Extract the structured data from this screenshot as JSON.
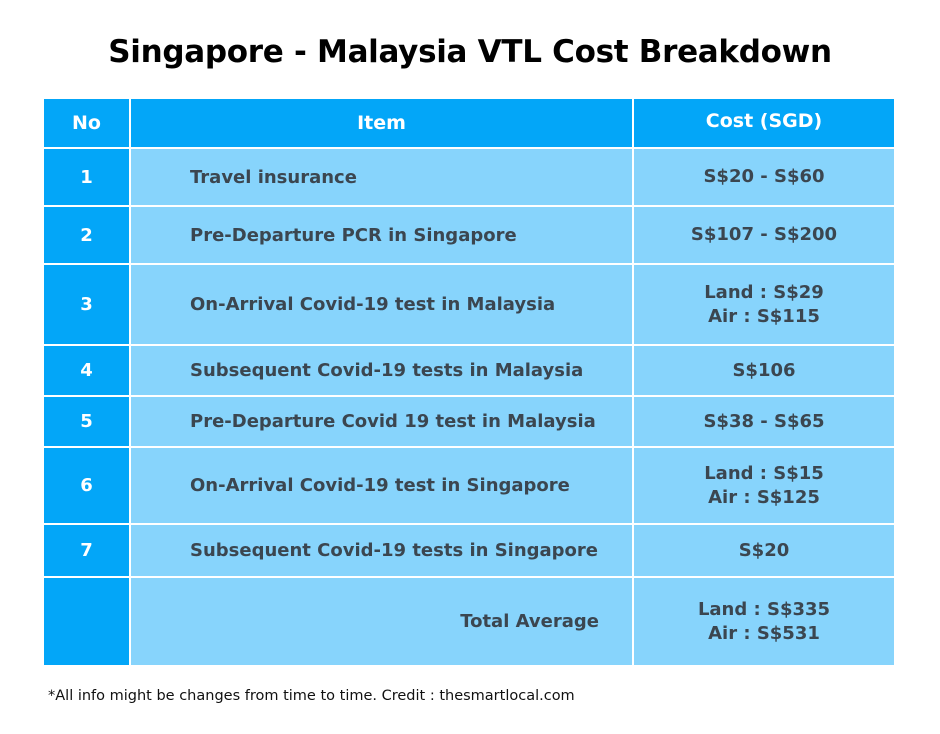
{
  "title": "Singapore - Malaysia VTL Cost Breakdown",
  "header": {
    "no": "No",
    "item": "Item",
    "cost": "Cost (SGD)"
  },
  "rows": [
    {
      "no": "1",
      "item": "Travel insurance",
      "cost": [
        "S$20 - S$60"
      ]
    },
    {
      "no": "2",
      "item": "Pre-Departure PCR in Singapore",
      "cost": [
        "S$107 - S$200"
      ]
    },
    {
      "no": "3",
      "item": "On-Arrival Covid-19 test in Malaysia",
      "cost": [
        "Land : S$29",
        "Air : S$115"
      ]
    },
    {
      "no": "4",
      "item": "Subsequent Covid-19 tests in Malaysia",
      "cost": [
        "S$106"
      ]
    },
    {
      "no": "5",
      "item": "Pre-Departure Covid 19 test in Malaysia",
      "cost": [
        "S$38 - S$65"
      ]
    },
    {
      "no": "6",
      "item": "On-Arrival Covid-19 test in Singapore",
      "cost": [
        "Land : S$15",
        "Air : S$125"
      ]
    },
    {
      "no": "7",
      "item": "Subsequent Covid-19 tests in Singapore",
      "cost": [
        "S$20"
      ]
    }
  ],
  "total": {
    "label": "Total Average",
    "cost": [
      "Land : S$335",
      "Air : S$531"
    ]
  },
  "footnote": "*All info might be changes from time to time. Credit : thesmartlocal.com",
  "colors": {
    "header_blue": "#03a6f8",
    "cell_blue": "#87d4fc",
    "text": "#3b4650"
  }
}
